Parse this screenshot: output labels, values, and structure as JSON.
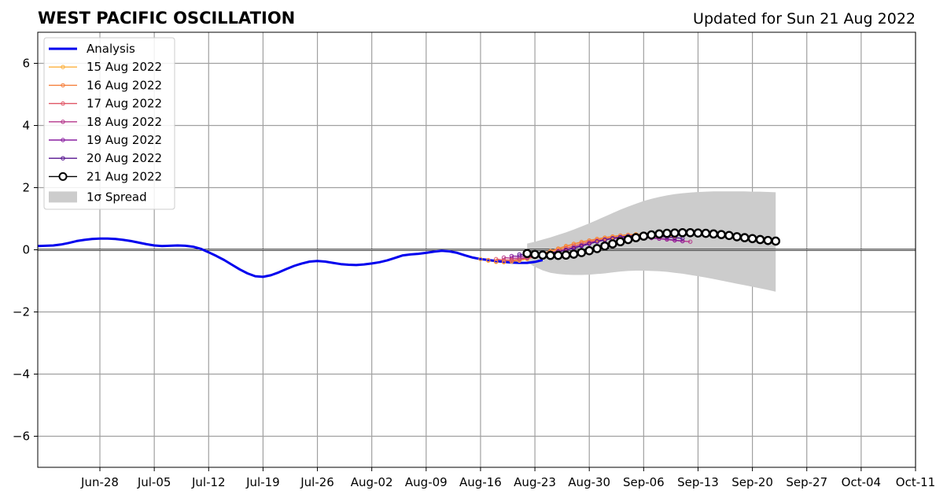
{
  "chart_data": {
    "type": "line",
    "title": "WEST PACIFIC OSCILLATION",
    "subtitle": "Updated for Sun 21 Aug 2022",
    "xlabel": "",
    "ylabel": "",
    "xlim": [
      "2022-06-20",
      "2022-10-11"
    ],
    "ylim": [
      -7,
      7
    ],
    "grid": true,
    "legend_position": "top-left",
    "x_ticks": [
      "2022-06-28",
      "2022-07-05",
      "2022-07-12",
      "2022-07-19",
      "2022-07-26",
      "2022-08-02",
      "2022-08-09",
      "2022-08-16",
      "2022-08-23",
      "2022-08-30",
      "2022-09-06",
      "2022-09-13",
      "2022-09-20",
      "2022-09-27",
      "2022-10-04",
      "2022-10-11"
    ],
    "x_tick_labels": [
      "Jun-28",
      "Jul-05",
      "Jul-12",
      "Jul-19",
      "Jul-26",
      "Aug-02",
      "Aug-09",
      "Aug-16",
      "Aug-23",
      "Aug-30",
      "Sep-06",
      "Sep-13",
      "Sep-20",
      "Sep-27",
      "Oct-04",
      "Oct-11"
    ],
    "y_ticks": [
      -6,
      -4,
      -2,
      0,
      2,
      4,
      6
    ],
    "y_tick_labels": [
      "−6",
      "−4",
      "−2",
      "0",
      "2",
      "4",
      "6"
    ],
    "legend_entries": {
      "analysis": "Analysis",
      "spread": "1σ Spread"
    },
    "analysis": {
      "name": "Analysis",
      "color": "#0000ee",
      "start_date": "2022-06-20",
      "values": [
        0.12,
        0.13,
        0.14,
        0.17,
        0.22,
        0.28,
        0.32,
        0.35,
        0.36,
        0.36,
        0.35,
        0.32,
        0.28,
        0.23,
        0.18,
        0.14,
        0.12,
        0.13,
        0.14,
        0.13,
        0.1,
        0.03,
        -0.08,
        -0.2,
        -0.33,
        -0.48,
        -0.63,
        -0.76,
        -0.85,
        -0.87,
        -0.82,
        -0.73,
        -0.62,
        -0.52,
        -0.44,
        -0.38,
        -0.36,
        -0.38,
        -0.42,
        -0.46,
        -0.48,
        -0.49,
        -0.47,
        -0.44,
        -0.4,
        -0.34,
        -0.26,
        -0.18,
        -0.15,
        -0.13,
        -0.1,
        -0.06,
        -0.03,
        -0.05,
        -0.1,
        -0.18,
        -0.25,
        -0.3,
        -0.33,
        -0.36,
        -0.39,
        -0.41,
        -0.42,
        -0.42,
        -0.39,
        -0.33
      ]
    },
    "forecasts": [
      {
        "name": "15 Aug 2022",
        "color": "#fcb03d",
        "start_date": "2022-08-16",
        "values": [
          -0.3,
          -0.35,
          -0.39,
          -0.4,
          -0.38,
          -0.35,
          -0.3,
          -0.22,
          -0.14,
          -0.06,
          0.02,
          0.1,
          0.18,
          0.24,
          0.29,
          0.33,
          0.37,
          0.41,
          0.45,
          0.48,
          0.5,
          0.51,
          0.5,
          0.48,
          0.46,
          0.44
        ]
      },
      {
        "name": "16 Aug 2022",
        "color": "#f57f3b",
        "start_date": "2022-08-17",
        "values": [
          -0.33,
          -0.37,
          -0.38,
          -0.36,
          -0.32,
          -0.26,
          -0.2,
          -0.12,
          -0.04,
          0.04,
          0.12,
          0.19,
          0.25,
          0.3,
          0.35,
          0.39,
          0.43,
          0.46,
          0.48,
          0.49,
          0.48,
          0.46,
          0.44,
          0.42,
          0.4
        ]
      },
      {
        "name": "17 Aug 2022",
        "color": "#e05464",
        "start_date": "2022-08-18",
        "values": [
          -0.3,
          -0.33,
          -0.33,
          -0.31,
          -0.27,
          -0.22,
          -0.16,
          -0.1,
          -0.03,
          0.05,
          0.12,
          0.19,
          0.25,
          0.3,
          0.34,
          0.38,
          0.41,
          0.43,
          0.43,
          0.42,
          0.4,
          0.37,
          0.34,
          0.31,
          0.28
        ]
      },
      {
        "name": "18 Aug 2022",
        "color": "#b5368b",
        "start_date": "2022-08-19",
        "values": [
          -0.25,
          -0.27,
          -0.27,
          -0.25,
          -0.22,
          -0.18,
          -0.13,
          -0.07,
          0.0,
          0.07,
          0.14,
          0.21,
          0.27,
          0.32,
          0.36,
          0.39,
          0.41,
          0.41,
          0.4,
          0.38,
          0.36,
          0.33,
          0.3,
          0.28,
          0.26
        ]
      },
      {
        "name": "19 Aug 2022",
        "color": "#8a1fa0",
        "start_date": "2022-08-20",
        "values": [
          -0.2,
          -0.21,
          -0.2,
          -0.18,
          -0.15,
          -0.11,
          -0.06,
          0.0,
          0.07,
          0.14,
          0.21,
          0.27,
          0.32,
          0.36,
          0.39,
          0.41,
          0.41,
          0.4,
          0.38,
          0.36,
          0.34,
          0.31,
          0.28
        ]
      },
      {
        "name": "20 Aug 2022",
        "color": "#55138f",
        "start_date": "2022-08-21",
        "values": [
          -0.15,
          -0.16,
          -0.15,
          -0.13,
          -0.1,
          -0.06,
          -0.01,
          0.05,
          0.12,
          0.19,
          0.26,
          0.32,
          0.37,
          0.41,
          0.44,
          0.46,
          0.46,
          0.45,
          0.43,
          0.41,
          0.39,
          0.37
        ]
      }
    ],
    "latest_forecast": {
      "name": "21 Aug 2022",
      "color": "#000000",
      "start_date": "2022-08-22",
      "values": [
        -0.12,
        -0.15,
        -0.17,
        -0.18,
        -0.18,
        -0.17,
        -0.14,
        -0.09,
        -0.03,
        0.04,
        0.12,
        0.19,
        0.26,
        0.33,
        0.39,
        0.44,
        0.48,
        0.51,
        0.53,
        0.54,
        0.55,
        0.55,
        0.54,
        0.53,
        0.51,
        0.49,
        0.46,
        0.42,
        0.39,
        0.36,
        0.33,
        0.3,
        0.28
      ]
    },
    "spread": {
      "name": "1σ Spread",
      "color": "#cccccc",
      "start_date": "2022-08-22",
      "upper": [
        0.2,
        0.26,
        0.33,
        0.4,
        0.48,
        0.56,
        0.65,
        0.75,
        0.85,
        0.96,
        1.07,
        1.18,
        1.29,
        1.39,
        1.48,
        1.57,
        1.64,
        1.7,
        1.75,
        1.79,
        1.82,
        1.84,
        1.86,
        1.87,
        1.88,
        1.88,
        1.88,
        1.88,
        1.88,
        1.87,
        1.87,
        1.86,
        1.85
      ],
      "lower": [
        -0.4,
        -0.55,
        -0.66,
        -0.74,
        -0.78,
        -0.8,
        -0.81,
        -0.81,
        -0.8,
        -0.78,
        -0.76,
        -0.73,
        -0.7,
        -0.68,
        -0.67,
        -0.67,
        -0.68,
        -0.69,
        -0.71,
        -0.74,
        -0.77,
        -0.81,
        -0.85,
        -0.89,
        -0.94,
        -0.99,
        -1.04,
        -1.09,
        -1.14,
        -1.19,
        -1.24,
        -1.29,
        -1.35
      ]
    }
  }
}
